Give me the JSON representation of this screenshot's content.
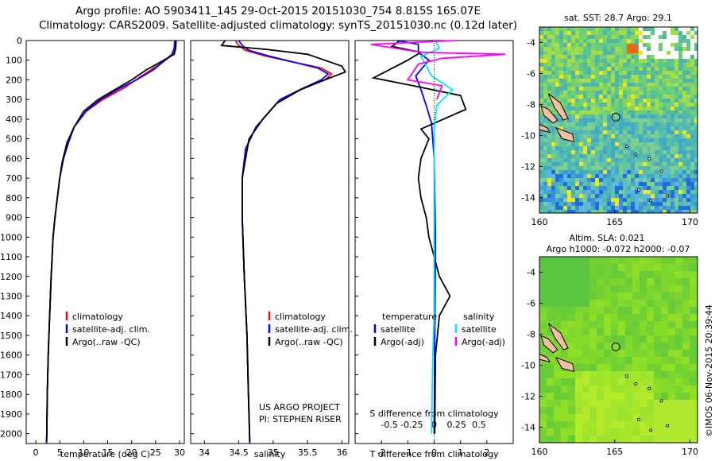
{
  "header": {
    "title_line1": "Argo profile: AO 5903411_145 29-Oct-2015 20151030_754 8.815S 165.07E",
    "title_line2": "Climatology: CARS2009. Satellite-adjusted climatology: synTS_20151030.nc (0.12d later)"
  },
  "colors": {
    "climatology": "#ff0000",
    "satellite": "#0000ff",
    "argo": "#000000",
    "sat_s": "#00e5ff",
    "argo_s": "#ff00ff",
    "land": "#f2bfa0"
  },
  "depth_axis": {
    "ylim": [
      0,
      2050
    ],
    "ticks": [
      0,
      100,
      200,
      300,
      400,
      500,
      600,
      700,
      800,
      900,
      1000,
      1100,
      1200,
      1300,
      1400,
      1500,
      1600,
      1700,
      1800,
      1900,
      2000
    ]
  },
  "chart_data": [
    {
      "id": "temperature",
      "type": "line",
      "xlabel": "temperature (deg C)",
      "xlim": [
        -2,
        31
      ],
      "xticks": [
        0,
        5,
        10,
        15,
        20,
        25,
        30
      ],
      "legend": {
        "entries": [
          "climatology",
          "satellite-adj. clim.",
          "Argo(..raw -QC)"
        ]
      },
      "series": [
        {
          "name": "climatology",
          "color": "#ff0000",
          "points": [
            [
              29.1,
              0
            ],
            [
              29.0,
              40
            ],
            [
              28.7,
              70
            ],
            [
              26.5,
              110
            ],
            [
              24,
              150
            ],
            [
              21.5,
              190
            ],
            [
              18.5,
              240
            ],
            [
              14,
              300
            ],
            [
              10.5,
              360
            ],
            [
              8,
              440
            ],
            [
              6.8,
              520
            ],
            [
              5.8,
              600
            ],
            [
              5,
              700
            ],
            [
              4.5,
              800
            ],
            [
              4,
              900
            ],
            [
              3.6,
              1000
            ],
            [
              3.2,
              1200
            ],
            [
              2.9,
              1400
            ],
            [
              2.6,
              1600
            ],
            [
              2.4,
              1800
            ],
            [
              2.3,
              2000
            ],
            [
              2.25,
              2050
            ]
          ]
        },
        {
          "name": "satellite-adj. clim.",
          "color": "#0000ff",
          "points": [
            [
              29.0,
              0
            ],
            [
              28.9,
              40
            ],
            [
              28.4,
              70
            ],
            [
              26.5,
              110
            ],
            [
              24.5,
              150
            ],
            [
              21,
              200
            ],
            [
              17,
              250
            ],
            [
              13.5,
              300
            ],
            [
              10.5,
              360
            ],
            [
              8,
              440
            ],
            [
              6.8,
              520
            ],
            [
              5.8,
              600
            ],
            [
              5,
              700
            ],
            [
              4.5,
              800
            ],
            [
              4,
              900
            ],
            [
              3.6,
              1000
            ],
            [
              3.2,
              1200
            ],
            [
              2.9,
              1400
            ],
            [
              2.6,
              1600
            ],
            [
              2.4,
              1800
            ],
            [
              2.3,
              2000
            ],
            [
              2.25,
              2050
            ]
          ]
        },
        {
          "name": "Argo(..raw -QC)",
          "color": "#000000",
          "points": [
            [
              29.3,
              0
            ],
            [
              29.2,
              40
            ],
            [
              28.9,
              70
            ],
            [
              26,
              110
            ],
            [
              23,
              150
            ],
            [
              20,
              200
            ],
            [
              16.5,
              250
            ],
            [
              13,
              300
            ],
            [
              10,
              360
            ],
            [
              8,
              440
            ],
            [
              6.5,
              520
            ],
            [
              5.5,
              620
            ],
            [
              5,
              700
            ],
            [
              4.5,
              800
            ],
            [
              4,
              900
            ],
            [
              3.6,
              1000
            ],
            [
              3.2,
              1200
            ],
            [
              2.9,
              1400
            ],
            [
              2.6,
              1600
            ],
            [
              2.4,
              1800
            ],
            [
              2.3,
              2000
            ],
            [
              2.25,
              2040
            ]
          ]
        }
      ]
    },
    {
      "id": "salinity",
      "type": "line",
      "xlabel": "salinity",
      "xlim": [
        33.8,
        36.1
      ],
      "xticks": [
        34,
        34.5,
        35,
        35.5,
        36
      ],
      "legend": {
        "entries": [
          "climatology",
          "satellite-adj. clim.",
          "Argo(..raw -QC)"
        ]
      },
      "annotation": [
        "US ARGO PROJECT",
        "PI: STEPHEN RISER"
      ],
      "series": [
        {
          "name": "climatology",
          "color": "#ff0000",
          "points": [
            [
              34.45,
              0
            ],
            [
              34.5,
              25
            ],
            [
              34.6,
              50
            ],
            [
              34.9,
              80
            ],
            [
              35.3,
              110
            ],
            [
              35.7,
              140
            ],
            [
              35.85,
              170
            ],
            [
              35.75,
              200
            ],
            [
              35.45,
              240
            ],
            [
              35.1,
              300
            ],
            [
              34.95,
              360
            ],
            [
              34.75,
              440
            ],
            [
              34.6,
              550
            ],
            [
              34.55,
              700
            ],
            [
              34.55,
              900
            ],
            [
              34.58,
              1200
            ],
            [
              34.62,
              1500
            ],
            [
              34.64,
              1800
            ],
            [
              34.66,
              2050
            ]
          ]
        },
        {
          "name": "satellite-adj. clim.",
          "color": "#0000ff",
          "points": [
            [
              34.5,
              0
            ],
            [
              34.55,
              25
            ],
            [
              34.65,
              50
            ],
            [
              34.95,
              80
            ],
            [
              35.3,
              110
            ],
            [
              35.65,
              140
            ],
            [
              35.8,
              170
            ],
            [
              35.7,
              200
            ],
            [
              35.45,
              240
            ],
            [
              35.1,
              300
            ],
            [
              34.95,
              360
            ],
            [
              34.75,
              440
            ],
            [
              34.6,
              550
            ],
            [
              34.55,
              700
            ],
            [
              34.55,
              900
            ],
            [
              34.58,
              1200
            ],
            [
              34.62,
              1500
            ],
            [
              34.64,
              1800
            ],
            [
              34.66,
              2050
            ]
          ]
        },
        {
          "name": "Argo(..raw -QC)",
          "color": "#000000",
          "points": [
            [
              34.3,
              0
            ],
            [
              34.25,
              25
            ],
            [
              34.9,
              45
            ],
            [
              35.5,
              70
            ],
            [
              36.0,
              130
            ],
            [
              36.05,
              160
            ],
            [
              35.75,
              200
            ],
            [
              35.4,
              250
            ],
            [
              35.05,
              320
            ],
            [
              34.85,
              400
            ],
            [
              34.65,
              500
            ],
            [
              34.55,
              700
            ],
            [
              34.55,
              900
            ],
            [
              34.58,
              1200
            ],
            [
              34.62,
              1500
            ],
            [
              34.64,
              1800
            ],
            [
              34.66,
              2040
            ]
          ]
        }
      ]
    },
    {
      "id": "difference",
      "type": "line",
      "xlabel": "T difference from climatology",
      "xlabel_top": "S difference from climatology",
      "xlim": [
        -3,
        3
      ],
      "xticks": [
        -2,
        -1,
        0,
        1,
        2
      ],
      "top_ticks": {
        "labels": [
          "-0.5",
          "-0.25",
          "0",
          "0.25",
          "0.5"
        ],
        "values": [
          -1.7,
          -0.85,
          0,
          0.85,
          1.7
        ]
      },
      "legend": {
        "groups": [
          {
            "heading": "temperature",
            "entries": [
              "satellite",
              "Argo(-adj)"
            ]
          },
          {
            "heading": "salinity",
            "entries": [
              "satellite",
              "Argo(-adj)"
            ]
          }
        ]
      },
      "series": [
        {
          "name": "temperature satellite",
          "color": "#0000ff",
          "points": [
            [
              -1.4,
              0
            ],
            [
              -0.6,
              20
            ],
            [
              -0.6,
              60
            ],
            [
              -0.2,
              100
            ],
            [
              -0.7,
              180
            ],
            [
              -0.5,
              250
            ],
            [
              -0.3,
              330
            ],
            [
              -0.1,
              420
            ],
            [
              0,
              600
            ],
            [
              0.05,
              1000
            ],
            [
              0,
              2000
            ]
          ]
        },
        {
          "name": "temperature Argo(-adj)",
          "color": "#000000",
          "points": [
            [
              -1.3,
              0
            ],
            [
              -1.6,
              30
            ],
            [
              -0.5,
              60
            ],
            [
              -1.0,
              100
            ],
            [
              -2.3,
              190
            ],
            [
              -0.8,
              230
            ],
            [
              1.0,
              280
            ],
            [
              1.2,
              350
            ],
            [
              -0.5,
              450
            ],
            [
              -0.2,
              500
            ],
            [
              -0.5,
              600
            ],
            [
              -0.6,
              700
            ],
            [
              -0.5,
              800
            ],
            [
              -0.3,
              900
            ],
            [
              -0.2,
              1000
            ],
            [
              0.2,
              1200
            ],
            [
              0.6,
              1300
            ],
            [
              0.2,
              1400
            ],
            [
              0.05,
              1600
            ],
            [
              0.02,
              2000
            ]
          ]
        },
        {
          "name": "salinity satellite",
          "color": "#00e5ff",
          "points": [
            [
              0.05,
              0
            ],
            [
              0.2,
              40
            ],
            [
              -0.5,
              80
            ],
            [
              -0.3,
              130
            ],
            [
              -0.1,
              180
            ],
            [
              0.7,
              250
            ],
            [
              0.1,
              330
            ],
            [
              0,
              450
            ],
            [
              0,
              1000
            ],
            [
              0,
              1400
            ],
            [
              -0.05,
              1600
            ],
            [
              -0.1,
              2000
            ]
          ]
        },
        {
          "name": "salinity Argo(-adj)",
          "color": "#ff00ff",
          "points": [
            [
              0.8,
              0
            ],
            [
              -2.4,
              20
            ],
            [
              -0.5,
              60
            ],
            [
              2.7,
              70
            ],
            [
              0.3,
              90
            ],
            [
              -0.6,
              120
            ],
            [
              -1.0,
              200
            ],
            [
              0.3,
              230
            ],
            [
              0.1,
              300
            ]
          ]
        }
      ]
    },
    {
      "id": "sst_map",
      "type": "heatmap",
      "title": "sat. SST: 28.7 Argo: 29.1",
      "x_ticks": [
        "160",
        "165",
        "170"
      ],
      "y_ticks": [
        "-4",
        "-6",
        "-8",
        "-10",
        "-12",
        "-14"
      ],
      "lon": [
        160,
        170.5
      ],
      "lat": [
        -3,
        -15
      ],
      "float_position": [
        165.07,
        -8.815
      ]
    },
    {
      "id": "sla_map",
      "type": "heatmap",
      "title_line1": "Altim. SLA: 0.021",
      "title_line2": "Argo h1000: -0.072 h2000: -0.07",
      "x_ticks": [
        "160",
        "165",
        "170"
      ],
      "y_ticks": [
        "-4",
        "-6",
        "-8",
        "-10",
        "-12",
        "-14"
      ],
      "lon": [
        160,
        170.5
      ],
      "lat": [
        -3,
        -15
      ],
      "float_position": [
        165.07,
        -8.815
      ]
    }
  ],
  "footer": {
    "credit": "©IMOS 06-Nov-2015 20:39:44"
  }
}
